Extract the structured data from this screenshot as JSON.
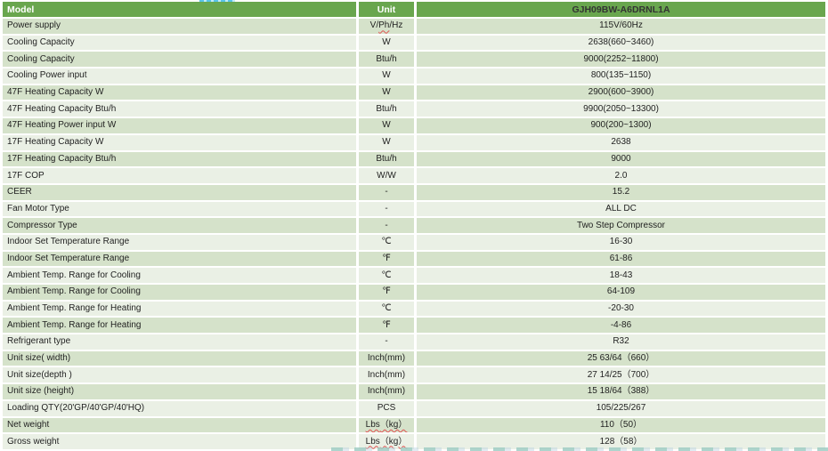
{
  "colors": {
    "header_bg": "#69a64e",
    "row_dark": "#d5e2ca",
    "row_light": "#eaf0e5",
    "text_dark": "#1f1f1f",
    "header_text_light": "#ffffff",
    "header_text_dark": "#333333",
    "squiggle_red": "#e05252",
    "top_artifact_cyan": "#58c4ea",
    "bottom_artifact_teal": "#a0cdc4"
  },
  "table": {
    "headers": {
      "model": "Model",
      "unit": "Unit",
      "value": "GJH09BW-A6DRNL1A"
    },
    "rows": [
      {
        "label": "Power supply",
        "unit": "V/Ph/Hz",
        "value": "115V/60Hz",
        "unit_misspelled": [
          "Ph"
        ]
      },
      {
        "label": "Cooling Capacity",
        "unit": "W",
        "value": "2638(660~3460)"
      },
      {
        "label": "Cooling Capacity",
        "unit": "Btu/h",
        "value": "9000(2252~11800)"
      },
      {
        "label": "Cooling Power input",
        "unit": "W",
        "value": "800(135~1150)"
      },
      {
        "label": "47F Heating Capacity W",
        "unit": "W",
        "value": "2900(600~3900)"
      },
      {
        "label": "47F Heating Capacity Btu/h",
        "unit": "Btu/h",
        "value": "9900(2050~13300)"
      },
      {
        "label": "47F Heating Power input W",
        "unit": "W",
        "value": "900(200~1300)"
      },
      {
        "label": "17F Heating Capacity W",
        "unit": "W",
        "value": "2638"
      },
      {
        "label": "17F Heating Capacity Btu/h",
        "unit": "Btu/h",
        "value": "9000"
      },
      {
        "label": "17F COP",
        "unit": "W/W",
        "value": "2.0"
      },
      {
        "label": "CEER",
        "unit": "-",
        "value": "15.2"
      },
      {
        "label": "Fan Motor Type",
        "unit": "-",
        "value": "ALL DC"
      },
      {
        "label": "Compressor Type",
        "unit": "-",
        "value": "Two Step Compressor"
      },
      {
        "label": "Indoor Set Temperature Range",
        "unit": "℃",
        "value": "16-30"
      },
      {
        "label": "Indoor Set Temperature Range",
        "unit": "℉",
        "value": "61-86"
      },
      {
        "label": "Ambient Temp. Range for Cooling",
        "unit": "℃",
        "value": "18-43"
      },
      {
        "label": "Ambient Temp. Range for Cooling",
        "unit": "℉",
        "value": "64-109"
      },
      {
        "label": "Ambient Temp. Range for Heating",
        "unit": "℃",
        "value": "-20-30"
      },
      {
        "label": "Ambient Temp. Range for Heating",
        "unit": "℉",
        "value": "-4-86"
      },
      {
        "label": "Refrigerant type",
        "unit": "-",
        "value": "R32"
      },
      {
        "label": "Unit size( width)",
        "unit": "Inch(mm)",
        "value": "25 63/64（660）"
      },
      {
        "label": "Unit size(depth )",
        "unit": "Inch(mm)",
        "value": "27 14/25（700）"
      },
      {
        "label": "Unit  size (height)",
        "unit": "Inch(mm)",
        "value": "15 18/64（388）"
      },
      {
        "label": "Loading QTY(20'GP/40'GP/40'HQ)",
        "unit": "PCS",
        "value": "105/225/267"
      },
      {
        "label": "Net weight",
        "unit": "Lbs（kg）",
        "value": "110（50）",
        "unit_misspelled": [
          "Lbs",
          "（kg）"
        ]
      },
      {
        "label": "Gross weight",
        "unit": "Lbs（kg）",
        "value": "128（58）",
        "unit_misspelled": [
          "Lbs",
          "（kg）"
        ]
      }
    ]
  }
}
